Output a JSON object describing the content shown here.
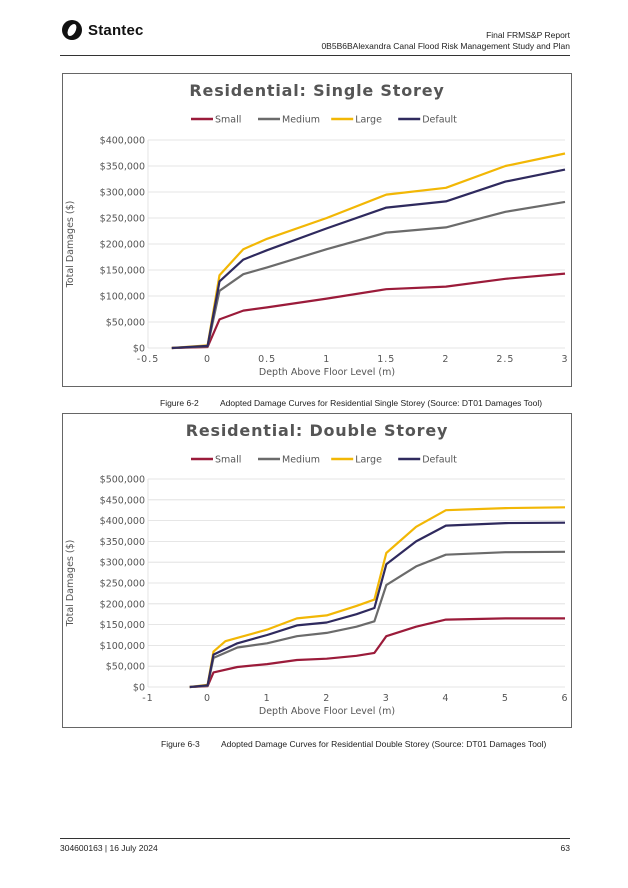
{
  "header": {
    "logo_text": "Stantec",
    "report_title": "Final FRMS&P Report",
    "project": "0B5B6BAlexandra Canal Flood Risk Management Study and Plan"
  },
  "footer": {
    "doc_ref": "304600163 | 16 July 2024",
    "page_number": "63"
  },
  "captions": [
    {
      "number": "Figure 6-2",
      "text": "Adopted Damage Curves for Residential Single Storey (Source: DT01 Damages Tool)"
    },
    {
      "number": "Figure 6-3",
      "text": "Adopted Damage Curves for Residential Double Storey (Source: DT01 Damages Tool)"
    }
  ],
  "chart_data": [
    {
      "type": "line",
      "title": "Residential: Single Storey",
      "xlabel": "Depth Above Floor Level (m)",
      "ylabel": "Total Damages ($)",
      "xlim": [
        -0.5,
        3
      ],
      "ylim": [
        0,
        400000
      ],
      "x_ticks": [
        "-0.5",
        "0",
        "0.5",
        "1",
        "1.5",
        "2",
        "2.5",
        "3"
      ],
      "y_ticks": [
        "$0",
        "$50,000",
        "$100,000",
        "$150,000",
        "$200,000",
        "$250,000",
        "$300,000",
        "$350,000",
        "$400,000"
      ],
      "grid": true,
      "legend_position": "top",
      "series": [
        {
          "name": "Small",
          "color": "#9b1b3a",
          "points": [
            [
              -0.3,
              0
            ],
            [
              0,
              2000
            ],
            [
              0.1,
              55000
            ],
            [
              0.3,
              72000
            ],
            [
              0.5,
              78000
            ],
            [
              1,
              95000
            ],
            [
              1.5,
              113000
            ],
            [
              2,
              118000
            ],
            [
              2.5,
              133000
            ],
            [
              3,
              143000
            ]
          ]
        },
        {
          "name": "Medium",
          "color": "#6b6b6b",
          "points": [
            [
              -0.3,
              0
            ],
            [
              0,
              3000
            ],
            [
              0.1,
              110000
            ],
            [
              0.3,
              142000
            ],
            [
              0.5,
              155000
            ],
            [
              1,
              190000
            ],
            [
              1.5,
              222000
            ],
            [
              2,
              232000
            ],
            [
              2.5,
              262000
            ],
            [
              3,
              281000
            ]
          ]
        },
        {
          "name": "Large",
          "color": "#f2b705",
          "points": [
            [
              -0.3,
              0
            ],
            [
              0,
              5000
            ],
            [
              0.1,
              140000
            ],
            [
              0.3,
              190000
            ],
            [
              0.5,
              210000
            ],
            [
              1,
              250000
            ],
            [
              1.5,
              295000
            ],
            [
              2,
              308000
            ],
            [
              2.5,
              350000
            ],
            [
              3,
              374000
            ]
          ]
        },
        {
          "name": "Default",
          "color": "#2f2a5e",
          "points": [
            [
              -0.3,
              0
            ],
            [
              0,
              4000
            ],
            [
              0.1,
              128000
            ],
            [
              0.3,
              170000
            ],
            [
              0.5,
              188000
            ],
            [
              1,
              230000
            ],
            [
              1.5,
              270000
            ],
            [
              2,
              282000
            ],
            [
              2.5,
              320000
            ],
            [
              3,
              343000
            ]
          ]
        }
      ]
    },
    {
      "type": "line",
      "title": "Residential: Double Storey",
      "xlabel": "Depth Above Floor Level (m)",
      "ylabel": "Total Damages ($)",
      "xlim": [
        -1,
        6
      ],
      "ylim": [
        0,
        500000
      ],
      "x_ticks": [
        "-1",
        "0",
        "1",
        "2",
        "3",
        "4",
        "5",
        "6"
      ],
      "y_ticks": [
        "$0",
        "$50,000",
        "$100,000",
        "$150,000",
        "$200,000",
        "$250,000",
        "$300,000",
        "$350,000",
        "$400,000",
        "$450,000",
        "$500,000"
      ],
      "grid": true,
      "legend_position": "top",
      "series": [
        {
          "name": "Small",
          "color": "#9b1b3a",
          "points": [
            [
              -0.3,
              0
            ],
            [
              0,
              2000
            ],
            [
              0.1,
              35000
            ],
            [
              0.5,
              48000
            ],
            [
              1,
              55000
            ],
            [
              1.5,
              65000
            ],
            [
              2,
              68000
            ],
            [
              2.5,
              75000
            ],
            [
              2.8,
              82000
            ],
            [
              3,
              122000
            ],
            [
              3.5,
              145000
            ],
            [
              4,
              162000
            ],
            [
              5,
              165000
            ],
            [
              6,
              165000
            ]
          ]
        },
        {
          "name": "Medium",
          "color": "#6b6b6b",
          "points": [
            [
              -0.3,
              0
            ],
            [
              0,
              3000
            ],
            [
              0.1,
              70000
            ],
            [
              0.5,
              95000
            ],
            [
              1,
              105000
            ],
            [
              1.5,
              122000
            ],
            [
              2,
              130000
            ],
            [
              2.5,
              145000
            ],
            [
              2.8,
              158000
            ],
            [
              3,
              245000
            ],
            [
              3.5,
              290000
            ],
            [
              4,
              318000
            ],
            [
              5,
              324000
            ],
            [
              6,
              325000
            ]
          ]
        },
        {
          "name": "Large",
          "color": "#f2b705",
          "points": [
            [
              -0.3,
              0
            ],
            [
              0,
              5000
            ],
            [
              0.1,
              85000
            ],
            [
              0.3,
              110000
            ],
            [
              1,
              138000
            ],
            [
              1.5,
              165000
            ],
            [
              2,
              172000
            ],
            [
              2.5,
              195000
            ],
            [
              2.8,
              210000
            ],
            [
              3,
              322000
            ],
            [
              3.5,
              385000
            ],
            [
              4,
              425000
            ],
            [
              5,
              430000
            ],
            [
              6,
              432000
            ]
          ]
        },
        {
          "name": "Default",
          "color": "#2f2a5e",
          "points": [
            [
              -0.3,
              0
            ],
            [
              0,
              4000
            ],
            [
              0.1,
              78000
            ],
            [
              0.5,
              105000
            ],
            [
              1,
              125000
            ],
            [
              1.5,
              148000
            ],
            [
              2,
              155000
            ],
            [
              2.5,
              175000
            ],
            [
              2.8,
              190000
            ],
            [
              3,
              295000
            ],
            [
              3.5,
              350000
            ],
            [
              4,
              388000
            ],
            [
              5,
              394000
            ],
            [
              6,
              395000
            ]
          ]
        }
      ]
    }
  ]
}
